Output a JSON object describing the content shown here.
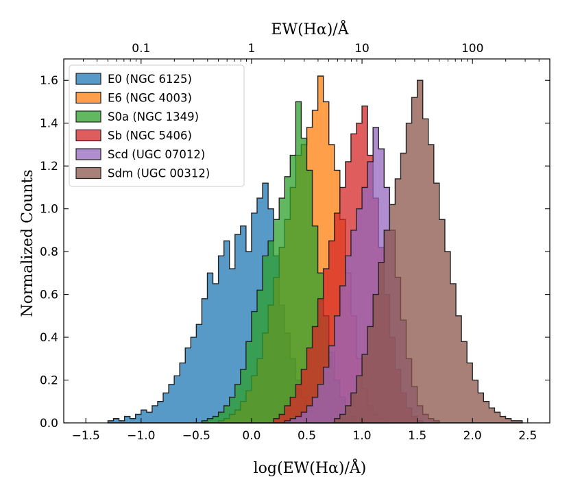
{
  "chart_data": {
    "type": "histogram",
    "title": "",
    "xlabel": "log(EW(Hα)/Å)",
    "ylabel": "Normalized Counts",
    "top_xlabel": "EW(Hα)/Å",
    "xlim": [
      -1.7,
      2.7
    ],
    "ylim": [
      0,
      1.7
    ],
    "grid": false,
    "legend_position": "top-left",
    "x_ticks": [
      {
        "value": -1.5,
        "label": "−1.5"
      },
      {
        "value": -1.0,
        "label": "−1.0"
      },
      {
        "value": -0.5,
        "label": "−0.5"
      },
      {
        "value": 0.0,
        "label": "0.0"
      },
      {
        "value": 0.5,
        "label": "0.5"
      },
      {
        "value": 1.0,
        "label": "1.0"
      },
      {
        "value": 1.5,
        "label": "1.5"
      },
      {
        "value": 2.0,
        "label": "2.0"
      },
      {
        "value": 2.5,
        "label": "2.5"
      }
    ],
    "y_ticks": [
      {
        "value": 0.0,
        "label": "0.0"
      },
      {
        "value": 0.2,
        "label": "0.2"
      },
      {
        "value": 0.4,
        "label": "0.4"
      },
      {
        "value": 0.6,
        "label": "0.6"
      },
      {
        "value": 0.8,
        "label": "0.8"
      },
      {
        "value": 1.0,
        "label": "1.0"
      },
      {
        "value": 1.2,
        "label": "1.2"
      },
      {
        "value": 1.4,
        "label": "1.4"
      },
      {
        "value": 1.6,
        "label": "1.6"
      }
    ],
    "top_ticks": [
      {
        "value": -1,
        "label": "0.1"
      },
      {
        "value": 0,
        "label": "1"
      },
      {
        "value": 1,
        "label": "10"
      },
      {
        "value": 2,
        "label": "100"
      }
    ],
    "series": [
      {
        "name": "E0 (NGC 6125)",
        "color": "#1f77b4",
        "x_start": -1.3,
        "bin_width": 0.05,
        "values": [
          0.01,
          0.02,
          0.01,
          0.03,
          0.02,
          0.04,
          0.06,
          0.05,
          0.08,
          0.1,
          0.14,
          0.18,
          0.22,
          0.28,
          0.35,
          0.4,
          0.46,
          0.58,
          0.7,
          0.65,
          0.78,
          0.85,
          0.72,
          0.88,
          0.92,
          0.8,
          0.98,
          1.05,
          1.12,
          1.0,
          0.78,
          0.55,
          0.42,
          0.3,
          0.2,
          0.12,
          0.07,
          0.04,
          0.02,
          0.01
        ]
      },
      {
        "name": "E6 (NGC 4003)",
        "color": "#ff7f0e",
        "x_start": -0.3,
        "bin_width": 0.05,
        "values": [
          0.01,
          0.02,
          0.04,
          0.06,
          0.1,
          0.15,
          0.22,
          0.3,
          0.42,
          0.55,
          0.68,
          0.82,
          0.95,
          1.1,
          1.25,
          1.3,
          1.38,
          1.46,
          1.62,
          1.5,
          1.3,
          1.18,
          0.95,
          0.7,
          0.5,
          0.3,
          0.16,
          0.08,
          0.04,
          0.02,
          0.01
        ]
      },
      {
        "name": "S0a (NGC 1349)",
        "color": "#2ca02c",
        "x_start": -0.45,
        "bin_width": 0.05,
        "values": [
          0.01,
          0.02,
          0.03,
          0.05,
          0.08,
          0.12,
          0.18,
          0.25,
          0.38,
          0.52,
          0.62,
          0.78,
          0.85,
          0.95,
          1.05,
          1.15,
          1.25,
          1.5,
          1.33,
          1.18,
          0.92,
          0.7,
          0.5,
          0.33,
          0.2,
          0.12,
          0.06,
          0.03,
          0.01
        ]
      },
      {
        "name": "Sb (NGC 5406)",
        "color": "#d62728",
        "x_start": 0.2,
        "bin_width": 0.05,
        "values": [
          0.02,
          0.04,
          0.08,
          0.12,
          0.18,
          0.25,
          0.35,
          0.45,
          0.58,
          0.72,
          0.85,
          0.98,
          1.1,
          1.22,
          1.35,
          1.4,
          1.48,
          1.25,
          1.05,
          0.82,
          0.6,
          0.4,
          0.25,
          0.14,
          0.07,
          0.03,
          0.01
        ]
      },
      {
        "name": "Scd (UGC 07012)",
        "color": "#9467bd",
        "x_start": 0.3,
        "bin_width": 0.05,
        "values": [
          0.01,
          0.02,
          0.03,
          0.05,
          0.08,
          0.12,
          0.18,
          0.26,
          0.36,
          0.5,
          0.64,
          0.78,
          0.9,
          1.0,
          1.1,
          1.22,
          1.38,
          1.28,
          1.1,
          0.9,
          0.68,
          0.48,
          0.3,
          0.17,
          0.08,
          0.04,
          0.02,
          0.01
        ]
      },
      {
        "name": "Sdm (UGC 00312)",
        "color": "#8c564b",
        "x_start": 0.75,
        "bin_width": 0.05,
        "values": [
          0.02,
          0.04,
          0.08,
          0.14,
          0.22,
          0.32,
          0.45,
          0.6,
          0.75,
          0.9,
          1.02,
          1.14,
          1.26,
          1.4,
          1.52,
          1.6,
          1.42,
          1.3,
          1.12,
          0.95,
          0.8,
          0.65,
          0.5,
          0.38,
          0.28,
          0.2,
          0.14,
          0.1,
          0.07,
          0.05,
          0.03,
          0.02,
          0.01,
          0.01
        ]
      }
    ]
  }
}
